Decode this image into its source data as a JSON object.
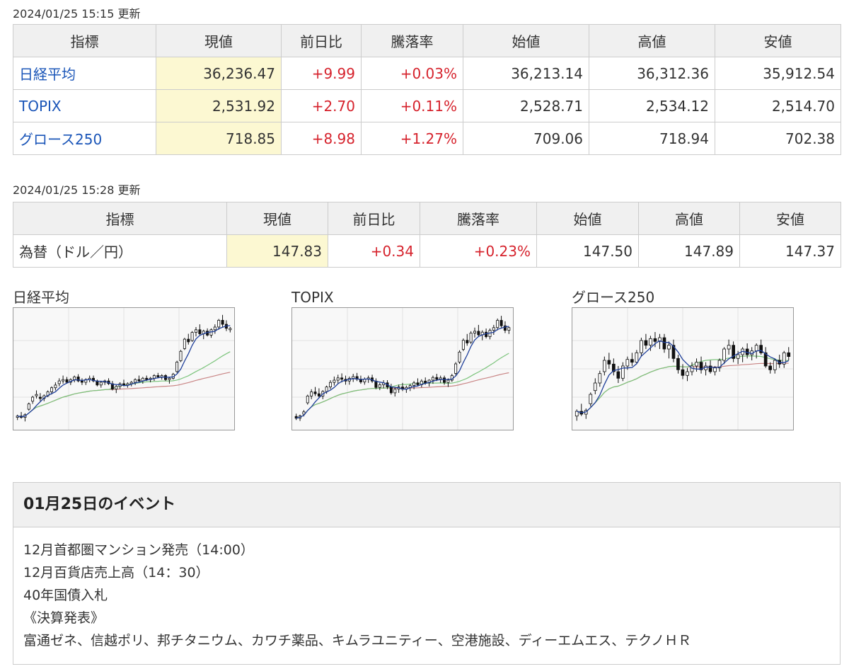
{
  "indices": {
    "updated": "2024/01/25 15:15 更新",
    "headers": [
      "指標",
      "現値",
      "前日比",
      "騰落率",
      "始値",
      "高値",
      "安値"
    ],
    "rows": [
      {
        "name": "日経平均",
        "current": "36,236.47",
        "change": "+9.99",
        "rate": "+0.03%",
        "open": "36,213.14",
        "high": "36,312.36",
        "low": "35,912.54"
      },
      {
        "name": "TOPIX",
        "current": "2,531.92",
        "change": "+2.70",
        "rate": "+0.11%",
        "open": "2,528.71",
        "high": "2,534.12",
        "low": "2,514.70"
      },
      {
        "name": "グロース250",
        "current": "718.85",
        "change": "+8.98",
        "rate": "+1.27%",
        "open": "709.06",
        "high": "718.94",
        "low": "702.38"
      }
    ]
  },
  "fx": {
    "updated": "2024/01/25 15:28 更新",
    "headers": [
      "指標",
      "現値",
      "前日比",
      "騰落率",
      "始値",
      "高値",
      "安値"
    ],
    "rows": [
      {
        "name": "為替（ドル／円）",
        "current": "147.83",
        "change": "+0.34",
        "rate": "+0.23%",
        "open": "147.50",
        "high": "147.89",
        "low": "147.37"
      }
    ]
  },
  "colors": {
    "up": "#d6232d",
    "link": "#1a55b8",
    "highlight": "#fcf8d2",
    "ma_short": "#1f3f99",
    "ma_mid": "#7cc47c",
    "ma_long": "#c98585"
  },
  "chart_data": [
    {
      "type": "candlestick",
      "title": "日経平均",
      "ylim": [
        32400,
        36600
      ],
      "candles": [
        [
          32700,
          32800,
          32600,
          32750
        ],
        [
          32750,
          32900,
          32650,
          32700
        ],
        [
          32700,
          32850,
          32550,
          32800
        ],
        [
          33000,
          33250,
          32950,
          33200
        ],
        [
          33300,
          33500,
          33200,
          33450
        ],
        [
          33500,
          33700,
          33400,
          33550
        ],
        [
          33450,
          33600,
          33300,
          33400
        ],
        [
          33400,
          33550,
          33300,
          33500
        ],
        [
          33500,
          33700,
          33450,
          33650
        ],
        [
          33650,
          33850,
          33550,
          33800
        ],
        [
          33800,
          34000,
          33700,
          33900
        ],
        [
          33950,
          34150,
          33850,
          34050
        ],
        [
          34050,
          34250,
          33950,
          34100
        ],
        [
          34100,
          34200,
          33950,
          34000
        ],
        [
          34000,
          34150,
          33900,
          34100
        ],
        [
          34100,
          34250,
          34000,
          34200
        ],
        [
          34200,
          34300,
          34000,
          34050
        ],
        [
          34050,
          34150,
          33900,
          34000
        ],
        [
          34000,
          34150,
          33900,
          34100
        ],
        [
          34100,
          34250,
          34000,
          34150
        ],
        [
          34150,
          34250,
          34000,
          34050
        ],
        [
          34050,
          34100,
          33850,
          33900
        ],
        [
          33900,
          34050,
          33800,
          34000
        ],
        [
          34000,
          34100,
          33900,
          34050
        ],
        [
          34050,
          34150,
          33900,
          33950
        ],
        [
          33950,
          34050,
          33700,
          33750
        ],
        [
          33750,
          33900,
          33600,
          33850
        ],
        [
          33850,
          34000,
          33750,
          33950
        ],
        [
          33950,
          34100,
          33850,
          33900
        ],
        [
          33900,
          34000,
          33800,
          33950
        ],
        [
          33950,
          34050,
          33850,
          34000
        ],
        [
          34000,
          34150,
          33900,
          34100
        ],
        [
          34100,
          34250,
          34000,
          34050
        ],
        [
          34050,
          34200,
          33950,
          34150
        ],
        [
          34150,
          34250,
          34050,
          34100
        ],
        [
          34100,
          34200,
          34000,
          34150
        ],
        [
          34150,
          34300,
          34050,
          34250
        ],
        [
          34250,
          34350,
          34150,
          34200
        ],
        [
          34200,
          34300,
          34100,
          34250
        ],
        [
          34250,
          34300,
          34050,
          34100
        ],
        [
          34100,
          34200,
          33950,
          34150
        ],
        [
          34150,
          34350,
          34100,
          34300
        ],
        [
          34400,
          34800,
          34350,
          34750
        ],
        [
          34800,
          35200,
          34750,
          35150
        ],
        [
          35250,
          35650,
          35200,
          35600
        ],
        [
          35600,
          35800,
          35400,
          35500
        ],
        [
          35550,
          35900,
          35500,
          35850
        ],
        [
          35850,
          36050,
          35700,
          35950
        ],
        [
          35950,
          36150,
          35750,
          35800
        ],
        [
          35800,
          35950,
          35600,
          35900
        ],
        [
          35900,
          36000,
          35700,
          35750
        ],
        [
          35750,
          36000,
          35650,
          35950
        ],
        [
          35950,
          36150,
          35800,
          36050
        ],
        [
          36050,
          36350,
          35950,
          36300
        ],
        [
          36300,
          36500,
          36050,
          36150
        ],
        [
          36150,
          36300,
          35900,
          36000
        ],
        [
          35950,
          36050,
          35850,
          36000
        ]
      ]
    },
    {
      "type": "candlestick",
      "title": "TOPIX",
      "ylim": [
        2310,
        2560
      ],
      "candles": [
        [
          2330,
          2336,
          2322,
          2326
        ],
        [
          2326,
          2334,
          2320,
          2331
        ],
        [
          2335,
          2344,
          2330,
          2340
        ],
        [
          2360,
          2378,
          2356,
          2375
        ],
        [
          2375,
          2390,
          2368,
          2384
        ],
        [
          2384,
          2395,
          2375,
          2380
        ],
        [
          2380,
          2392,
          2370,
          2375
        ],
        [
          2375,
          2388,
          2368,
          2385
        ],
        [
          2385,
          2398,
          2380,
          2395
        ],
        [
          2395,
          2410,
          2390,
          2405
        ],
        [
          2405,
          2418,
          2398,
          2410
        ],
        [
          2410,
          2422,
          2402,
          2415
        ],
        [
          2415,
          2425,
          2405,
          2412
        ],
        [
          2412,
          2420,
          2400,
          2408
        ],
        [
          2408,
          2418,
          2400,
          2414
        ],
        [
          2414,
          2424,
          2406,
          2418
        ],
        [
          2418,
          2426,
          2408,
          2412
        ],
        [
          2412,
          2420,
          2402,
          2406
        ],
        [
          2406,
          2416,
          2400,
          2412
        ],
        [
          2412,
          2420,
          2404,
          2415
        ],
        [
          2415,
          2422,
          2404,
          2408
        ],
        [
          2408,
          2414,
          2390,
          2394
        ],
        [
          2394,
          2404,
          2388,
          2400
        ],
        [
          2400,
          2410,
          2392,
          2404
        ],
        [
          2404,
          2410,
          2390,
          2395
        ],
        [
          2395,
          2402,
          2378,
          2382
        ],
        [
          2382,
          2394,
          2374,
          2390
        ],
        [
          2390,
          2400,
          2382,
          2395
        ],
        [
          2395,
          2404,
          2386,
          2390
        ],
        [
          2390,
          2398,
          2382,
          2394
        ],
        [
          2394,
          2402,
          2386,
          2398
        ],
        [
          2398,
          2408,
          2390,
          2404
        ],
        [
          2404,
          2414,
          2396,
          2400
        ],
        [
          2400,
          2412,
          2394,
          2408
        ],
        [
          2408,
          2416,
          2400,
          2404
        ],
        [
          2404,
          2412,
          2396,
          2410
        ],
        [
          2410,
          2420,
          2402,
          2416
        ],
        [
          2416,
          2424,
          2408,
          2412
        ],
        [
          2412,
          2420,
          2404,
          2415
        ],
        [
          2415,
          2420,
          2400,
          2405
        ],
        [
          2405,
          2414,
          2395,
          2410
        ],
        [
          2410,
          2424,
          2406,
          2420
        ],
        [
          2425,
          2450,
          2420,
          2446
        ],
        [
          2450,
          2476,
          2446,
          2472
        ],
        [
          2478,
          2502,
          2474,
          2498
        ],
        [
          2498,
          2512,
          2486,
          2492
        ],
        [
          2494,
          2518,
          2490,
          2514
        ],
        [
          2514,
          2526,
          2504,
          2518
        ],
        [
          2518,
          2532,
          2506,
          2510
        ],
        [
          2510,
          2520,
          2498,
          2516
        ],
        [
          2516,
          2524,
          2502,
          2506
        ],
        [
          2506,
          2524,
          2500,
          2520
        ],
        [
          2520,
          2532,
          2510,
          2526
        ],
        [
          2526,
          2546,
          2520,
          2542
        ],
        [
          2542,
          2552,
          2526,
          2530
        ],
        [
          2530,
          2540,
          2514,
          2520
        ],
        [
          2520,
          2528,
          2512,
          2526
        ]
      ]
    },
    {
      "type": "candlestick",
      "title": "グロース250",
      "ylim": [
        645,
        765
      ],
      "candles": [
        [
          655,
          662,
          650,
          660
        ],
        [
          660,
          668,
          655,
          657
        ],
        [
          657,
          663,
          652,
          661
        ],
        [
          668,
          680,
          665,
          678
        ],
        [
          682,
          695,
          678,
          690
        ],
        [
          690,
          703,
          686,
          700
        ],
        [
          702,
          718,
          698,
          714
        ],
        [
          714,
          722,
          705,
          710
        ],
        [
          710,
          716,
          698,
          702
        ],
        [
          702,
          708,
          690,
          695
        ],
        [
          695,
          712,
          692,
          708
        ],
        [
          708,
          718,
          704,
          715
        ],
        [
          715,
          722,
          708,
          712
        ],
        [
          712,
          725,
          710,
          722
        ],
        [
          722,
          738,
          718,
          735
        ],
        [
          735,
          742,
          726,
          730
        ],
        [
          730,
          740,
          724,
          737
        ],
        [
          737,
          744,
          728,
          734
        ],
        [
          734,
          742,
          726,
          738
        ],
        [
          738,
          742,
          722,
          726
        ],
        [
          726,
          734,
          716,
          730
        ],
        [
          730,
          736,
          712,
          716
        ],
        [
          716,
          720,
          700,
          704
        ],
        [
          704,
          710,
          694,
          698
        ],
        [
          698,
          706,
          692,
          702
        ],
        [
          702,
          712,
          698,
          708
        ],
        [
          708,
          716,
          702,
          712
        ],
        [
          712,
          718,
          700,
          704
        ],
        [
          704,
          712,
          698,
          708
        ],
        [
          708,
          714,
          700,
          702
        ],
        [
          702,
          708,
          698,
          706
        ],
        [
          706,
          716,
          702,
          714
        ],
        [
          714,
          728,
          710,
          726
        ],
        [
          726,
          736,
          720,
          730
        ],
        [
          730,
          734,
          712,
          716
        ],
        [
          716,
          724,
          710,
          720
        ],
        [
          720,
          728,
          712,
          726
        ],
        [
          726,
          732,
          716,
          720
        ],
        [
          720,
          728,
          714,
          724
        ],
        [
          724,
          732,
          716,
          730
        ],
        [
          730,
          736,
          720,
          722
        ],
        [
          722,
          728,
          706,
          708
        ],
        [
          708,
          712,
          700,
          704
        ],
        [
          704,
          716,
          700,
          714
        ],
        [
          714,
          720,
          706,
          710
        ],
        [
          710,
          724,
          706,
          722
        ],
        [
          722,
          728,
          714,
          718
        ]
      ]
    }
  ],
  "events": {
    "title": "01月25日のイベント",
    "items": [
      "12月首都圏マンション発売（14:00）",
      "12月百貨店売上高（14：30）",
      "40年国債入札",
      "《決算発表》",
      "富通ゼネ、信越ポリ、邦チタニウム、カワチ薬品、キムラユニティー、空港施設、ディーエムエス、テクノＨＲ"
    ]
  }
}
